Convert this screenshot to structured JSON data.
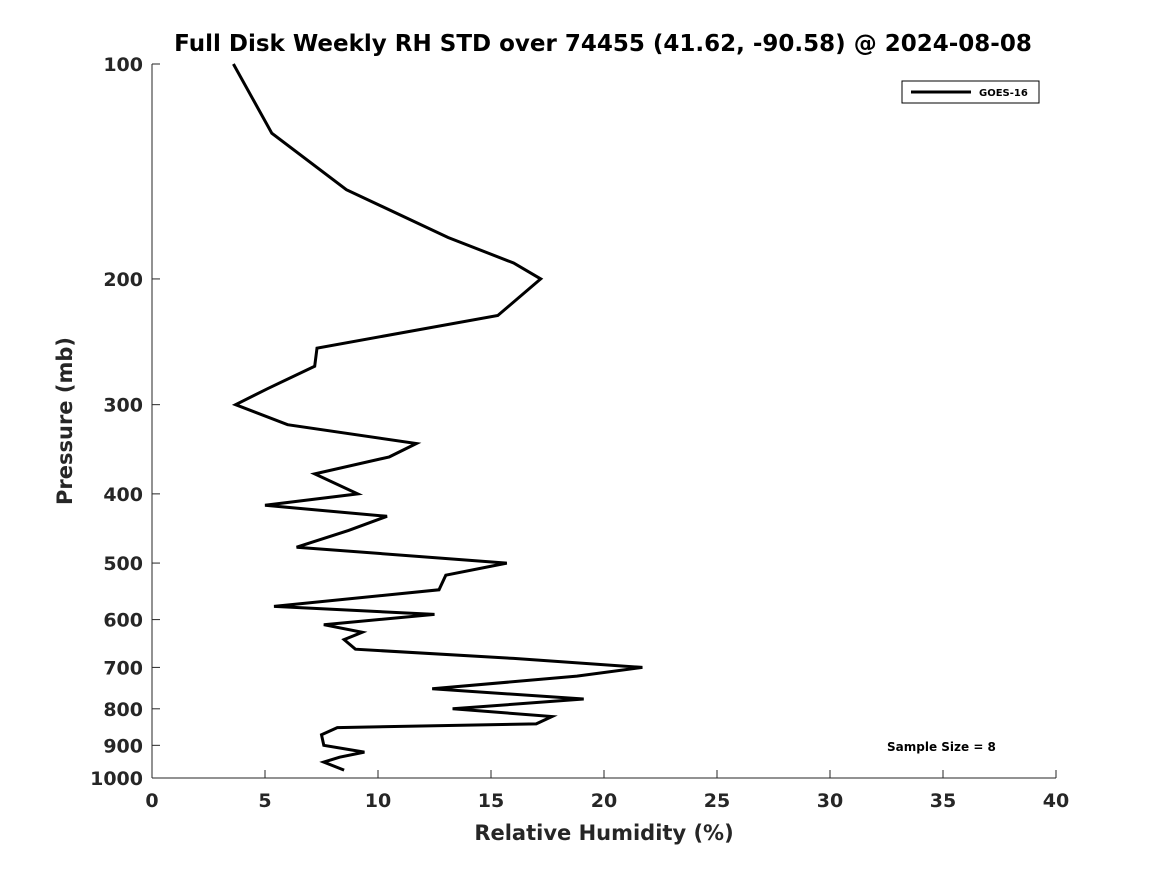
{
  "chart_data": {
    "type": "line",
    "title": "Full Disk Weekly RH STD over 74455 (41.62, -90.58) @ 2024-08-08",
    "xlabel": "Relative Humidity (%)",
    "ylabel": "Pressure (mb)",
    "xlim": [
      0,
      40
    ],
    "ylim": [
      100,
      1000
    ],
    "yscale": "log",
    "y_reversed": true,
    "xticks": [
      0,
      5,
      10,
      15,
      20,
      25,
      30,
      35,
      40
    ],
    "yticks": [
      100,
      200,
      300,
      400,
      500,
      600,
      700,
      800,
      900,
      1000
    ],
    "grid": false,
    "legend_position": "top-right",
    "annotation": "Sample Size = 8",
    "series": [
      {
        "name": "GOES-16",
        "color": "#000000",
        "points": [
          [
            3.6,
            100
          ],
          [
            5.3,
            125
          ],
          [
            8.6,
            150
          ],
          [
            13.1,
            175
          ],
          [
            16.0,
            190
          ],
          [
            17.2,
            200
          ],
          [
            15.3,
            225
          ],
          [
            7.3,
            250
          ],
          [
            7.2,
            265
          ],
          [
            5.1,
            285
          ],
          [
            3.7,
            300
          ],
          [
            6.0,
            320
          ],
          [
            11.7,
            340
          ],
          [
            10.5,
            355
          ],
          [
            7.2,
            375
          ],
          [
            9.1,
            400
          ],
          [
            5.0,
            415
          ],
          [
            10.4,
            430
          ],
          [
            8.7,
            450
          ],
          [
            6.4,
            475
          ],
          [
            15.7,
            500
          ],
          [
            13.0,
            520
          ],
          [
            12.7,
            545
          ],
          [
            5.4,
            575
          ],
          [
            12.5,
            590
          ],
          [
            7.6,
            610
          ],
          [
            9.3,
            625
          ],
          [
            8.5,
            640
          ],
          [
            9.0,
            660
          ],
          [
            16.0,
            680
          ],
          [
            21.7,
            700
          ],
          [
            18.8,
            720
          ],
          [
            12.4,
            750
          ],
          [
            19.1,
            775
          ],
          [
            13.3,
            800
          ],
          [
            17.7,
            820
          ],
          [
            17.0,
            840
          ],
          [
            8.2,
            850
          ],
          [
            7.5,
            870
          ],
          [
            7.6,
            900
          ],
          [
            9.4,
            920
          ],
          [
            8.3,
            935
          ],
          [
            7.6,
            950
          ],
          [
            8.5,
            975
          ]
        ]
      }
    ]
  }
}
